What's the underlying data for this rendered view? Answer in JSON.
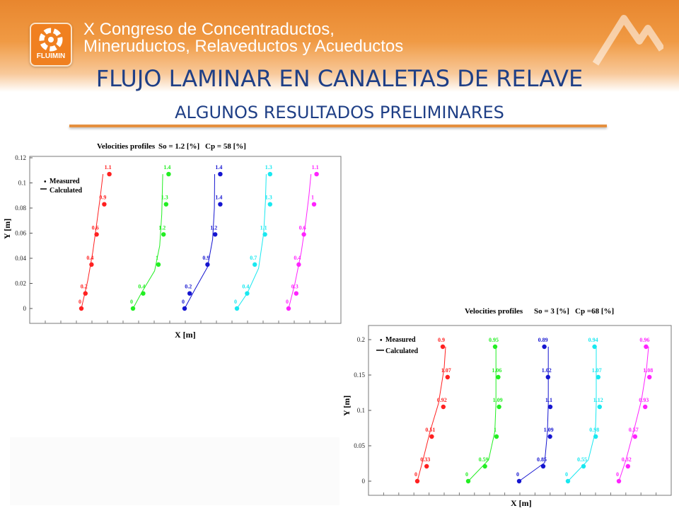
{
  "header": {
    "logo_text": "FLUIMIN",
    "congress_line1": "X Congreso de Concentraductos,",
    "congress_line2": "Mineruductos, Relaveductos y Acueductos"
  },
  "slide": {
    "title": "FLUJO LAMINAR EN CANALETAS DE RELAVE",
    "subtitle": "ALGUNOS RESULTADOS PRELIMINARES"
  },
  "colors": {
    "accent": "#e5903f",
    "title": "#1f3f86",
    "series": [
      "#ff2020",
      "#22ee22",
      "#1515d0",
      "#18e8f0",
      "#ff22ff"
    ]
  },
  "chart_data": [
    {
      "type": "scatter",
      "title": "Velocities profiles",
      "params": [
        "So = 1.2 [%]",
        "Cp = 58 [%]"
      ],
      "xlabel": "X [m]",
      "ylabel": "Y [m]",
      "ylim": [
        0,
        0.12
      ],
      "yticks": [
        "0",
        "0.02",
        "0.04",
        "0.06",
        "0.08",
        "0.1",
        "0.12"
      ],
      "legend": [
        "Measured",
        "Calculated"
      ],
      "legend_position": "top-left",
      "series": [
        {
          "points": [
            [
              0.0,
              0.0,
              "0"
            ],
            [
              0.16,
              0.012,
              "0.2"
            ],
            [
              0.4,
              0.035,
              "0.4"
            ],
            [
              0.6,
              0.059,
              "0.6"
            ],
            [
              0.9,
              0.083,
              "0.9"
            ],
            [
              1.1,
              0.107,
              "1.1"
            ]
          ],
          "curve": [
            [
              0.0,
              0.0
            ],
            [
              0.25,
              0.022
            ],
            [
              0.45,
              0.045
            ],
            [
              0.62,
              0.07
            ],
            [
              0.75,
              0.09
            ],
            [
              0.85,
              0.107
            ]
          ]
        },
        {
          "points": [
            [
              0.0,
              0.0,
              "0"
            ],
            [
              0.4,
              0.012,
              "0.4"
            ],
            [
              1.0,
              0.035,
              "1"
            ],
            [
              1.2,
              0.059,
              "1.2"
            ],
            [
              1.3,
              0.083,
              "1.3"
            ],
            [
              1.4,
              0.107,
              "1.4"
            ]
          ],
          "curve": [
            [
              0.0,
              0.0
            ],
            [
              0.35,
              0.013
            ],
            [
              0.85,
              0.03
            ],
            [
              1.05,
              0.05
            ],
            [
              1.13,
              0.075
            ],
            [
              1.17,
              0.107
            ]
          ]
        },
        {
          "points": [
            [
              0.0,
              0.0,
              "0"
            ],
            [
              0.2,
              0.012,
              "0.2"
            ],
            [
              0.9,
              0.035,
              "0.9"
            ],
            [
              1.2,
              0.059,
              "1.2"
            ],
            [
              1.4,
              0.083,
              "1.4"
            ],
            [
              1.4,
              0.107,
              "1.4"
            ]
          ],
          "curve": [
            [
              0.0,
              0.0
            ],
            [
              0.4,
              0.015
            ],
            [
              0.9,
              0.033
            ],
            [
              1.1,
              0.055
            ],
            [
              1.17,
              0.08
            ],
            [
              1.18,
              0.107
            ]
          ]
        },
        {
          "points": [
            [
              0.0,
              0.0,
              "0"
            ],
            [
              0.4,
              0.012,
              "0.4"
            ],
            [
              0.7,
              0.035,
              "0.7"
            ],
            [
              1.1,
              0.059,
              "1.1"
            ],
            [
              1.3,
              0.083,
              "1.3"
            ],
            [
              1.3,
              0.107,
              "1.3"
            ]
          ],
          "curve": [
            [
              0.0,
              0.0
            ],
            [
              0.4,
              0.012
            ],
            [
              0.85,
              0.032
            ],
            [
              1.05,
              0.06
            ],
            [
              1.12,
              0.085
            ],
            [
              1.15,
              0.107
            ]
          ]
        },
        {
          "points": [
            [
              0.0,
              0.0,
              "0"
            ],
            [
              0.3,
              0.012,
              "0.3"
            ],
            [
              0.4,
              0.035,
              "0.4"
            ],
            [
              0.6,
              0.059,
              "0.6"
            ],
            [
              1.0,
              0.083,
              "1"
            ],
            [
              1.1,
              0.107,
              "1.1"
            ]
          ],
          "curve": [
            [
              0.0,
              0.0
            ],
            [
              0.25,
              0.02
            ],
            [
              0.5,
              0.045
            ],
            [
              0.68,
              0.07
            ],
            [
              0.8,
              0.09
            ],
            [
              0.88,
              0.107
            ]
          ]
        }
      ]
    },
    {
      "type": "scatter",
      "title": "Velocities profiles",
      "params": [
        "So = 3 [%]",
        "Cp =68 [%]"
      ],
      "xlabel": "X [m]",
      "ylabel": "Y [m]",
      "ylim": [
        0,
        0.2
      ],
      "yticks": [
        "0",
        "0.05",
        "0.1",
        "0.15",
        "0.2"
      ],
      "legend": [
        "Measured",
        "Calculated"
      ],
      "legend_position": "top-left",
      "series": [
        {
          "points": [
            [
              0.0,
              0.0,
              "0"
            ],
            [
              0.33,
              0.021,
              "0.33"
            ],
            [
              0.51,
              0.063,
              "0.51"
            ],
            [
              0.92,
              0.105,
              "0.92"
            ],
            [
              1.07,
              0.147,
              "1.07"
            ],
            [
              0.9,
              0.19,
              "0.9"
            ]
          ],
          "curve": [
            [
              0.0,
              0.0
            ],
            [
              0.2,
              0.03
            ],
            [
              0.45,
              0.07
            ],
            [
              0.75,
              0.11
            ],
            [
              0.95,
              0.16
            ],
            [
              1.0,
              0.19
            ]
          ]
        },
        {
          "points": [
            [
              0.0,
              0.0,
              "0"
            ],
            [
              0.59,
              0.021,
              "0.59"
            ],
            [
              1.0,
              0.063,
              "1"
            ],
            [
              1.09,
              0.105,
              "1.09"
            ],
            [
              1.06,
              0.147,
              "1.06"
            ],
            [
              0.95,
              0.19,
              "0.95"
            ]
          ],
          "curve": [
            [
              0.0,
              0.0
            ],
            [
              0.72,
              0.03
            ],
            [
              0.94,
              0.07
            ],
            [
              0.98,
              0.11
            ],
            [
              0.98,
              0.16
            ],
            [
              0.98,
              0.19
            ]
          ]
        },
        {
          "points": [
            [
              0.0,
              0.0,
              "0"
            ],
            [
              0.85,
              0.021,
              "0.85"
            ],
            [
              1.09,
              0.063,
              "1.09"
            ],
            [
              1.1,
              0.105,
              "1.1"
            ],
            [
              1.02,
              0.147,
              "1.02"
            ],
            [
              0.89,
              0.19,
              "0.89"
            ]
          ],
          "curve": [
            [
              0.0,
              0.0
            ],
            [
              0.9,
              0.026
            ],
            [
              1.0,
              0.07
            ],
            [
              1.03,
              0.11
            ],
            [
              1.03,
              0.16
            ],
            [
              1.03,
              0.19
            ]
          ]
        },
        {
          "points": [
            [
              0.0,
              0.0,
              "0"
            ],
            [
              0.55,
              0.021,
              "0.55"
            ],
            [
              0.98,
              0.063,
              "0.98"
            ],
            [
              1.12,
              0.105,
              "1.12"
            ],
            [
              1.07,
              0.147,
              "1.07"
            ],
            [
              0.94,
              0.19,
              "0.94"
            ]
          ],
          "curve": [
            [
              0.0,
              0.0
            ],
            [
              0.72,
              0.03
            ],
            [
              0.97,
              0.07
            ],
            [
              1.0,
              0.11
            ],
            [
              1.0,
              0.16
            ],
            [
              1.0,
              0.19
            ]
          ]
        },
        {
          "points": [
            [
              0.0,
              0.0,
              "0"
            ],
            [
              0.32,
              0.021,
              "0.32"
            ],
            [
              0.57,
              0.063,
              "0.57"
            ],
            [
              0.93,
              0.105,
              "0.93"
            ],
            [
              1.08,
              0.147,
              "1.08"
            ],
            [
              0.96,
              0.19,
              "0.96"
            ]
          ],
          "curve": [
            [
              0.0,
              0.0
            ],
            [
              0.25,
              0.03
            ],
            [
              0.55,
              0.075
            ],
            [
              0.8,
              0.115
            ],
            [
              0.98,
              0.16
            ],
            [
              1.05,
              0.19
            ]
          ]
        }
      ]
    }
  ]
}
